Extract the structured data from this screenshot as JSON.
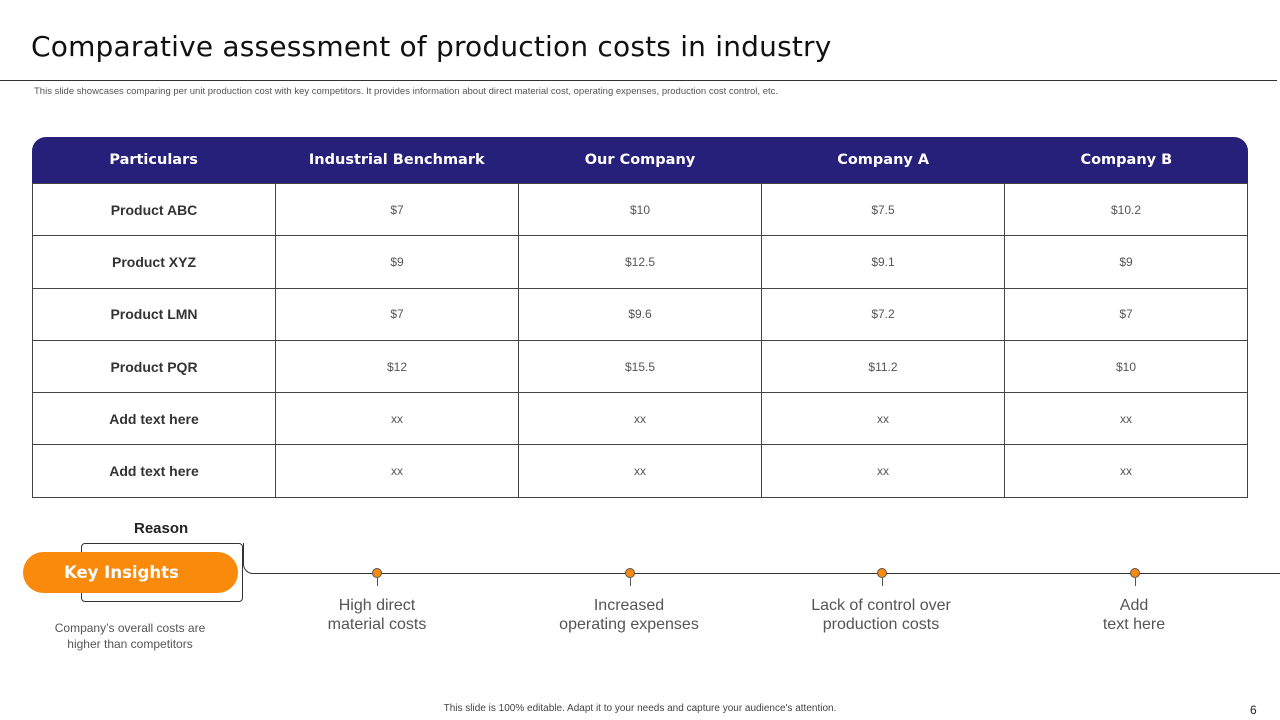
{
  "title": "Comparative assessment of production costs in industry",
  "subtitle": "This slide showcases comparing per unit production cost with key competitors. It provides information about direct material cost, operating expenses, production cost control, etc.",
  "table": {
    "headers": [
      "Particulars",
      "Industrial Benchmark",
      "Our Company",
      "Company A",
      "Company B"
    ],
    "rows": [
      [
        "Product ABC",
        "$7",
        "$10",
        "$7.5",
        "$10.2"
      ],
      [
        "Product XYZ",
        "$9",
        "$12.5",
        "$9.1",
        "$9"
      ],
      [
        "Product LMN",
        "$7",
        "$9.6",
        "$7.2",
        "$7"
      ],
      [
        "Product PQR",
        "$12",
        "$15.5",
        "$11.2",
        "$10"
      ],
      [
        "Add  text here",
        "xx",
        "xx",
        "xx",
        "xx"
      ],
      [
        "Add  text here",
        "xx",
        "xx",
        "xx",
        "xx"
      ]
    ]
  },
  "insights": {
    "reason_label": "Reason",
    "pill_label": "Key Insights",
    "description": "Company’s overall  costs are higher than competitors",
    "reasons": [
      {
        "line1": "High direct",
        "line2": "material costs"
      },
      {
        "line1": "Increased",
        "line2": "operating expenses"
      },
      {
        "line1": "Lack of control over",
        "line2": "production costs"
      },
      {
        "line1": "Add",
        "line2": "text here"
      }
    ]
  },
  "footer": "This slide is 100% editable.  Adapt it to your needs and capture your audience's attention.",
  "page_number": "6",
  "colors": {
    "header_bg": "#26207a",
    "accent": "#f98a0c"
  }
}
